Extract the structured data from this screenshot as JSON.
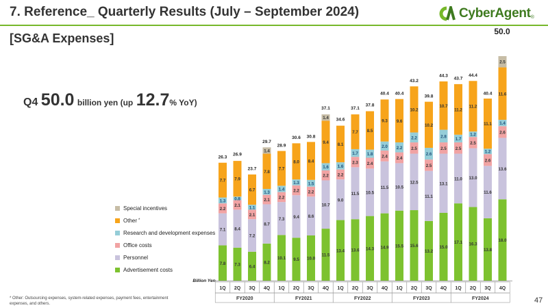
{
  "header": {
    "title": "7. Reference_ Quarterly Results (July – September 2024)",
    "subtitle": "[SG&A Expenses]",
    "logo_text": "CyberAgent",
    "logo_reg": "®"
  },
  "headline": {
    "quarter": "Q4",
    "value": "50.0",
    "unit_text": "billion yen (up",
    "growth": "12.7",
    "growth_unit": "% YoY)"
  },
  "big_total_label": "50.0",
  "unit_label": "Billion Yen",
  "footnote": "* Other: Outsourcing expenses, system-related expenses, payment fees, entertainment expenses, and others.",
  "page_number": "47",
  "colors": {
    "advertisement": "#7dc22f",
    "personnel": "#c9c3dd",
    "office": "#f1a3a3",
    "rd": "#95cdd8",
    "other": "#f7a41b",
    "special": "#c7bda6",
    "brand_green": "#76b82a"
  },
  "legend": [
    {
      "label": "Special incentives",
      "color_key": "special",
      "sup": ""
    },
    {
      "label": "Other",
      "color_key": "other",
      "sup": "*"
    },
    {
      "label": "Research and development expenses",
      "color_key": "rd",
      "sup": ""
    },
    {
      "label": "Office costs",
      "color_key": "office",
      "sup": ""
    },
    {
      "label": "Personnel",
      "color_key": "personnel",
      "sup": ""
    },
    {
      "label": "Advertisement costs",
      "color_key": "advertisement",
      "sup": ""
    }
  ],
  "chart_data": {
    "type": "bar",
    "stacked": true,
    "ylabel": "Billion Yen",
    "ylim": [
      0,
      50
    ],
    "grid": false,
    "categories": [
      "1Q",
      "2Q",
      "3Q",
      "4Q",
      "1Q",
      "2Q",
      "3Q",
      "4Q",
      "1Q",
      "2Q",
      "3Q",
      "4Q",
      "1Q",
      "2Q",
      "3Q",
      "4Q",
      "1Q",
      "2Q",
      "3Q",
      "4Q"
    ],
    "groups": [
      {
        "label": "FY2020",
        "count": 4
      },
      {
        "label": "FY2021",
        "count": 4
      },
      {
        "label": "FY2022",
        "count": 4
      },
      {
        "label": "FY2023",
        "count": 4
      },
      {
        "label": "FY2024",
        "count": 4
      }
    ],
    "series": [
      {
        "name": "Advertisement costs",
        "color_key": "advertisement",
        "values": [
          7.8,
          7.3,
          6.4,
          8.2,
          10.1,
          9.5,
          10.0,
          11.5,
          13.4,
          13.6,
          14.3,
          14.9,
          15.5,
          15.6,
          13.2,
          15.0,
          17.1,
          16.3,
          13.8,
          18.0
        ]
      },
      {
        "name": "Personnel",
        "color_key": "personnel",
        "values": [
          7.1,
          8.4,
          7.2,
          8.7,
          7.3,
          9.4,
          8.6,
          10.7,
          9.0,
          11.5,
          10.5,
          11.5,
          10.5,
          12.5,
          11.1,
          13.1,
          11.0,
          13.0,
          11.6,
          13.6
        ]
      },
      {
        "name": "Office costs",
        "color_key": "office",
        "values": [
          2.2,
          2.1,
          2.1,
          2.1,
          2.2,
          2.2,
          2.2,
          2.2,
          2.2,
          2.3,
          2.4,
          2.4,
          2.4,
          2.5,
          2.5,
          2.5,
          2.5,
          2.5,
          2.6,
          2.6
        ]
      },
      {
        "name": "Research and development expenses",
        "color_key": "rd",
        "values": [
          1.3,
          0.8,
          1.1,
          1.3,
          1.4,
          1.3,
          1.5,
          1.6,
          1.6,
          1.7,
          1.8,
          2.0,
          2.2,
          2.2,
          2.6,
          2.8,
          1.7,
          1.2,
          1.2,
          1.4
        ]
      },
      {
        "name": "Other",
        "color_key": "other",
        "values": [
          7.7,
          7.9,
          6.7,
          7.8,
          7.7,
          8.0,
          8.4,
          9.4,
          8.1,
          7.7,
          8.5,
          9.3,
          9.6,
          10.2,
          10.2,
          10.7,
          11.2,
          11.2,
          11.1,
          11.6
        ]
      },
      {
        "name": "Special incentives",
        "color_key": "special",
        "values": [
          0,
          0,
          0,
          1.4,
          0,
          0,
          0,
          1.4,
          0,
          0,
          0,
          0,
          0,
          0,
          0,
          0,
          0,
          0,
          0,
          2.5
        ]
      }
    ],
    "totals": [
      26.3,
      26.9,
      23.7,
      29.7,
      28.9,
      30.6,
      30.8,
      37.1,
      34.6,
      37.1,
      37.8,
      40.4,
      40.4,
      43.2,
      39.8,
      44.3,
      43.7,
      44.4,
      40.4,
      50.0
    ]
  }
}
